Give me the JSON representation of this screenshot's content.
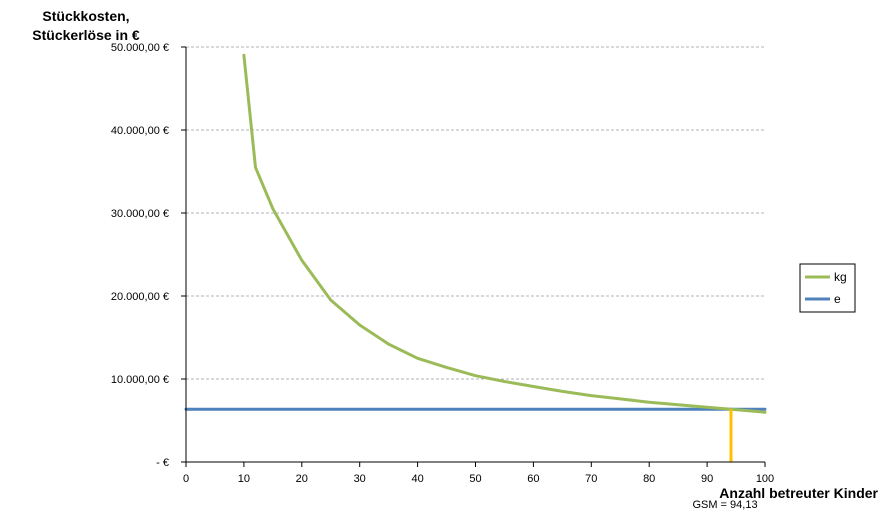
{
  "chart_data": {
    "type": "line",
    "ylabel_line1": "Stückkosten,",
    "ylabel_line2": "Stückerlöse in €",
    "xlabel": "Anzahl betreuter Kinder",
    "xlim": [
      0,
      100
    ],
    "ylim": [
      0,
      50000
    ],
    "x_ticks": [
      0,
      10,
      20,
      30,
      40,
      50,
      60,
      70,
      80,
      90,
      100
    ],
    "x_tick_labels": [
      "0",
      "10",
      "20",
      "30",
      "40",
      "50",
      "60",
      "70",
      "80",
      "90",
      "100"
    ],
    "y_ticks": [
      0,
      10000,
      20000,
      30000,
      40000,
      50000
    ],
    "y_tick_labels": [
      "-  €",
      "10.000,00  €",
      "20.000,00  €",
      "30.000,00  €",
      "40.000,00  €",
      "50.000,00  €"
    ],
    "grid": "horizontal dashed",
    "legend_position": "right",
    "series": [
      {
        "name": "kg",
        "color": "#9bbb59",
        "x": [
          10,
          12,
          15,
          20,
          25,
          30,
          35,
          40,
          45,
          50,
          55,
          60,
          65,
          70,
          75,
          80,
          85,
          90,
          94.13,
          100
        ],
        "y": [
          49000,
          35500,
          30500,
          24300,
          19500,
          16500,
          14200,
          12500,
          11400,
          10400,
          9700,
          9100,
          8500,
          8000,
          7600,
          7200,
          6900,
          6600,
          6350,
          6000
        ]
      },
      {
        "name": "e",
        "color": "#4f81bd",
        "x": [
          0,
          100
        ],
        "y": [
          6350,
          6350
        ]
      }
    ],
    "annotations": [
      {
        "text": "GSM = 94,13",
        "x": 94.13,
        "color": "#ffc000"
      }
    ]
  }
}
